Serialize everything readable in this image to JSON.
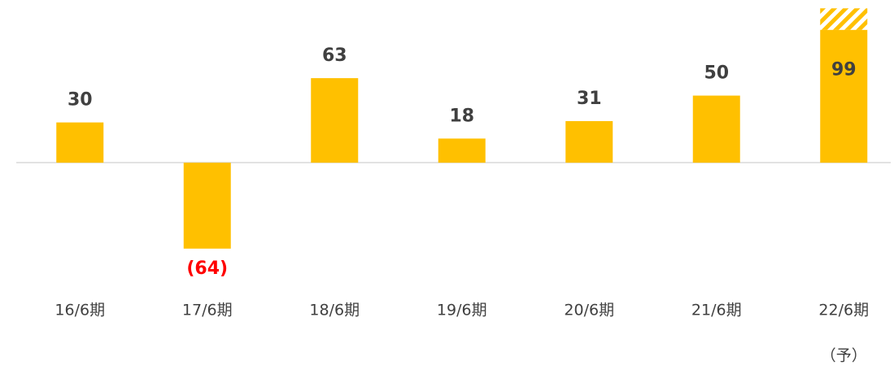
{
  "chart_data": {
    "type": "bar",
    "categories": [
      "16/6期",
      "17/6期",
      "18/6期",
      "19/6期",
      "20/6期",
      "21/6期",
      "22/6期"
    ],
    "series": [
      {
        "color": "#FFC000",
        "values": [
          30,
          -64,
          63,
          18,
          31,
          50,
          99
        ],
        "value_labels": [
          "30",
          "(64)",
          "63",
          "18",
          "31",
          "50",
          "99"
        ],
        "negative_label_color": "#FF0000"
      },
      {
        "color": "#FFC000",
        "hatched": true,
        "values": [
          null,
          null,
          null,
          null,
          null,
          null,
          16
        ]
      }
    ],
    "annotations": [
      {
        "text": "（予）",
        "category": 6
      }
    ],
    "ylim": [
      -75,
      120
    ]
  }
}
